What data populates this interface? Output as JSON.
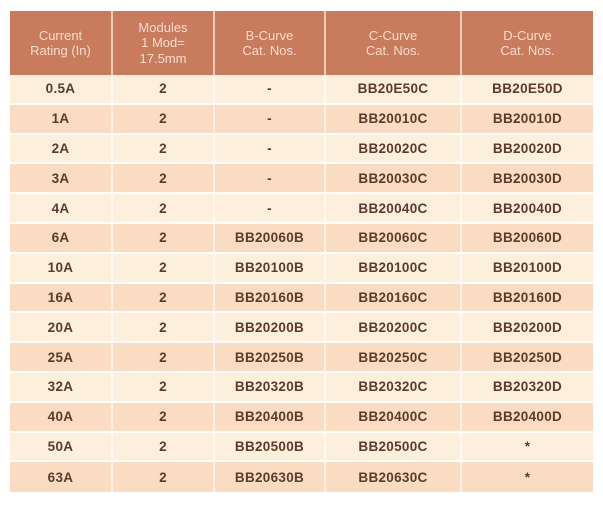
{
  "table": {
    "title_semantic": "MCB catalog numbers table",
    "columns": [
      {
        "id": "current_rating",
        "label": "Current\nRating (In)"
      },
      {
        "id": "modules",
        "label": "Modules\n1 Mod=\n17.5mm"
      },
      {
        "id": "b_curve",
        "label": "B-Curve\nCat. Nos."
      },
      {
        "id": "c_curve",
        "label": "C-Curve\nCat. Nos."
      },
      {
        "id": "d_curve",
        "label": "D-Curve\nCat. Nos."
      }
    ],
    "rows": [
      [
        "0.5A",
        "2",
        "-",
        "BB20E50C",
        "BB20E50D"
      ],
      [
        "1A",
        "2",
        "-",
        "BB20010C",
        "BB20010D"
      ],
      [
        "2A",
        "2",
        "-",
        "BB20020C",
        "BB20020D"
      ],
      [
        "3A",
        "2",
        "-",
        "BB20030C",
        "BB20030D"
      ],
      [
        "4A",
        "2",
        "-",
        "BB20040C",
        "BB20040D"
      ],
      [
        "6A",
        "2",
        "BB20060B",
        "BB20060C",
        "BB20060D"
      ],
      [
        "10A",
        "2",
        "BB20100B",
        "BB20100C",
        "BB20100D"
      ],
      [
        "16A",
        "2",
        "BB20160B",
        "BB20160C",
        "BB20160D"
      ],
      [
        "20A",
        "2",
        "BB20200B",
        "BB20200C",
        "BB20200D"
      ],
      [
        "25A",
        "2",
        "BB20250B",
        "BB20250C",
        "BB20250D"
      ],
      [
        "32A",
        "2",
        "BB20320B",
        "BB20320C",
        "BB20320D"
      ],
      [
        "40A",
        "2",
        "BB20400B",
        "BB20400C",
        "BB20400D"
      ],
      [
        "50A",
        "2",
        "BB20500B",
        "BB20500C",
        "*"
      ],
      [
        "63A",
        "2",
        "BB20630B",
        "BB20630C",
        "*"
      ]
    ]
  },
  "colors": {
    "header_bg": "#C97B5D",
    "header_text": "#F5DECD",
    "row_light": "#FCF0DD",
    "row_dark": "#FADCC2",
    "body_text": "#5D3A2B",
    "separator": "#FFFFFF",
    "page_bg": "#FFFFFF"
  }
}
